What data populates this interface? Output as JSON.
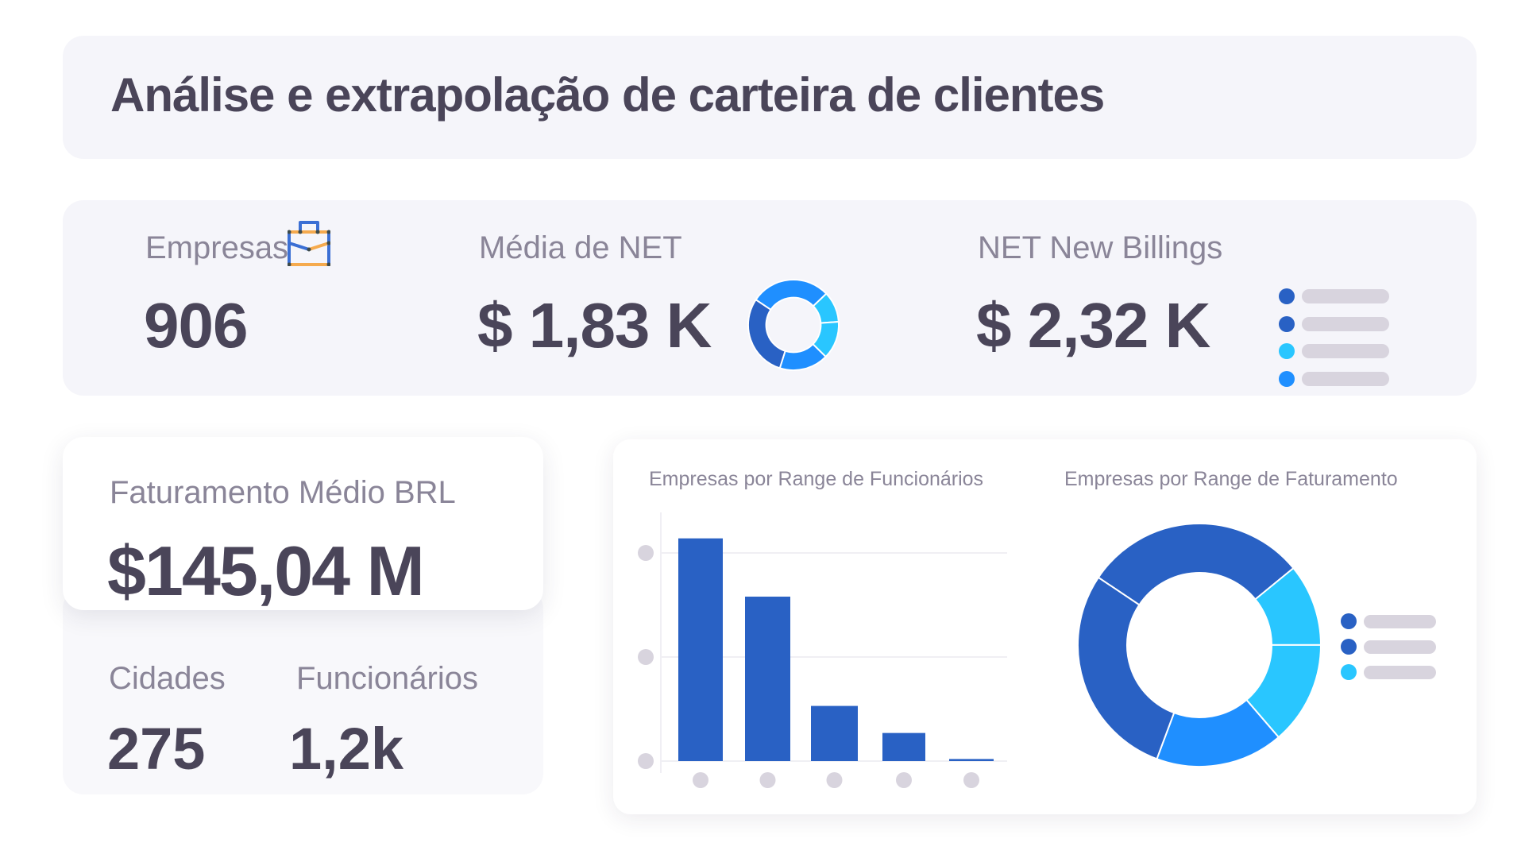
{
  "header": {
    "title": "Análise e extrapolação de carteira de clientes"
  },
  "kpis": {
    "empresas": {
      "label": "Empresas",
      "value": "906",
      "icon": "briefcase-icon"
    },
    "media_net": {
      "label": "Média de NET",
      "value": "$ 1,83 K",
      "icon": "donut-chart-icon"
    },
    "net_new_billings": {
      "label": "NET New Billings",
      "value": "$ 2,32 K",
      "icon": "legend-list-icon"
    }
  },
  "faturamento": {
    "label": "Faturamento Médio BRL",
    "value": "$145,04 M"
  },
  "secondary_stats": {
    "cidades": {
      "label": "Cidades",
      "value": "275"
    },
    "funcionarios": {
      "label": "Funcionários",
      "value": "1,2k"
    }
  },
  "colors": {
    "text_dark": "#4a4559",
    "text_muted": "#8a8598",
    "card_bg": "#f5f5fa",
    "dark_blue": "#2961c4",
    "medium_blue": "#1f8fff",
    "cyan": "#29c6ff",
    "placeholder_gray": "#d8d4de",
    "briefcase_blue": "#3b6fd4",
    "briefcase_orange": "#f5aa4e"
  },
  "mini_legend_colors": [
    "#2961c4",
    "#2961c4",
    "#29c6ff",
    "#1f8fff"
  ],
  "chart_legend_colors": [
    "#2961c4",
    "#2961c4",
    "#29c6ff"
  ],
  "chart_data": [
    {
      "type": "bar",
      "title": "Empresas por Range de Funcionários",
      "categories": [
        "",
        "",
        "",
        "",
        ""
      ],
      "values": [
        214,
        158,
        53,
        27,
        2
      ],
      "xlabel": "",
      "ylabel": "",
      "y_ticks": [
        0,
        100,
        200
      ],
      "tick_labels_hidden": true,
      "ylim": [
        0,
        240
      ],
      "grid": true,
      "color": "#2961c4"
    },
    {
      "type": "pie",
      "donut": true,
      "title": "Empresas por Range de Faturamento",
      "labels": [
        "",
        "",
        "",
        "",
        ""
      ],
      "values": [
        29.7,
        10.9,
        13.7,
        17.0,
        28.7
      ],
      "colors": [
        "#2961c4",
        "#29c6ff",
        "#29c6ff",
        "#1f8fff",
        "#2961c4"
      ],
      "legend_position": "right",
      "legend_entries": 3
    },
    {
      "type": "pie",
      "donut": true,
      "title": "",
      "labels": [
        "",
        "",
        "",
        "",
        ""
      ],
      "values": [
        28.5,
        11.0,
        13.5,
        17.5,
        29.5
      ],
      "colors": [
        "#1f8fff",
        "#29c6ff",
        "#29c6ff",
        "#1f8fff",
        "#2961c4"
      ]
    }
  ]
}
